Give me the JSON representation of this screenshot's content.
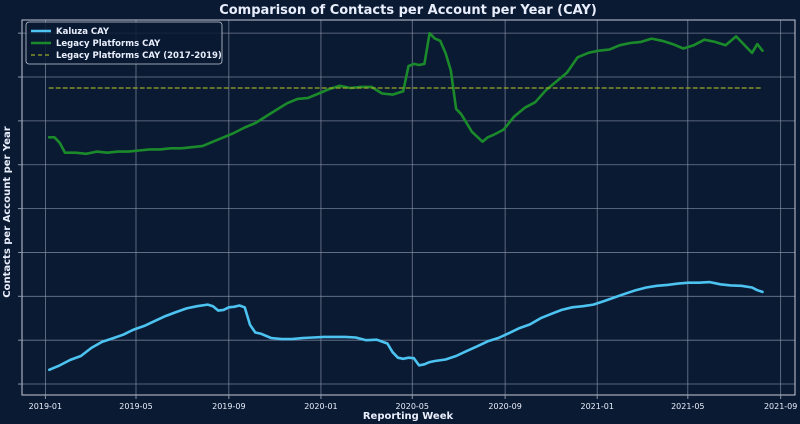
{
  "chart_data": {
    "type": "line",
    "title": "Comparison of Contacts per Account per Year (CAY)",
    "xlabel": "Reporting Week",
    "ylabel": "Contacts per Account per Year",
    "x_axis": {
      "type": "date",
      "min": "2018-12-01",
      "max": "2021-09-20",
      "ticks": [
        "2019-01",
        "2019-05",
        "2019-09",
        "2020-01",
        "2020-05",
        "2020-09",
        "2021-01",
        "2021-05",
        "2021-09"
      ]
    },
    "y_axis": {
      "tick_labels_visible": false,
      "gridlines": 9
    },
    "grid": true,
    "legend": "top-left",
    "colors": {
      "background": "#0b1a33",
      "grid": "#8a93a8",
      "text": "#e8eefc",
      "kaluza": "#4cc3f0",
      "legacy": "#1a8a2a",
      "legacy_baseline": "#9aa624"
    },
    "series": [
      {
        "name": "Kaluza CAY",
        "style": "solid",
        "x": [
          "2019-01-06",
          "2019-01-20",
          "2019-02-03",
          "2019-02-17",
          "2019-03-03",
          "2019-03-17",
          "2019-03-31",
          "2019-04-14",
          "2019-04-28",
          "2019-05-12",
          "2019-05-26",
          "2019-06-09",
          "2019-06-23",
          "2019-07-07",
          "2019-07-21",
          "2019-08-04",
          "2019-08-11",
          "2019-08-18",
          "2019-08-25",
          "2019-09-01",
          "2019-09-08",
          "2019-09-15",
          "2019-09-22",
          "2019-09-29",
          "2019-10-06",
          "2019-10-13",
          "2019-10-27",
          "2019-11-10",
          "2019-11-24",
          "2019-12-08",
          "2019-12-22",
          "2020-01-05",
          "2020-01-19",
          "2020-02-02",
          "2020-02-16",
          "2020-03-01",
          "2020-03-15",
          "2020-03-29",
          "2020-04-05",
          "2020-04-12",
          "2020-04-19",
          "2020-04-26",
          "2020-05-03",
          "2020-05-10",
          "2020-05-17",
          "2020-05-24",
          "2020-05-31",
          "2020-06-14",
          "2020-06-28",
          "2020-07-12",
          "2020-07-26",
          "2020-08-09",
          "2020-08-23",
          "2020-09-06",
          "2020-09-20",
          "2020-10-04",
          "2020-10-18",
          "2020-11-01",
          "2020-11-15",
          "2020-11-29",
          "2020-12-13",
          "2020-12-27",
          "2021-01-10",
          "2021-01-24",
          "2021-02-07",
          "2021-02-21",
          "2021-03-07",
          "2021-03-21",
          "2021-04-04",
          "2021-04-18",
          "2021-05-02",
          "2021-05-16",
          "2021-05-30",
          "2021-06-06",
          "2021-06-13",
          "2021-06-27",
          "2021-07-11",
          "2021-07-25",
          "2021-08-01",
          "2021-08-08"
        ],
        "y": [
          2.65,
          2.85,
          3.1,
          3.28,
          3.65,
          3.92,
          4.08,
          4.25,
          4.48,
          4.65,
          4.88,
          5.1,
          5.28,
          5.45,
          5.55,
          5.62,
          5.55,
          5.35,
          5.38,
          5.5,
          5.52,
          5.58,
          5.5,
          4.7,
          4.35,
          4.3,
          4.1,
          4.05,
          4.05,
          4.1,
          4.12,
          4.15,
          4.15,
          4.15,
          4.12,
          4.0,
          4.02,
          3.85,
          3.45,
          3.2,
          3.15,
          3.2,
          3.18,
          2.85,
          2.9,
          3.0,
          3.05,
          3.12,
          3.28,
          3.5,
          3.72,
          3.95,
          4.1,
          4.32,
          4.55,
          4.72,
          5.0,
          5.2,
          5.38,
          5.5,
          5.55,
          5.62,
          5.78,
          5.95,
          6.12,
          6.28,
          6.4,
          6.48,
          6.52,
          6.58,
          6.62,
          6.62,
          6.65,
          6.6,
          6.55,
          6.5,
          6.48,
          6.4,
          6.28,
          6.2
        ]
      },
      {
        "name": "Legacy Platforms CAY",
        "style": "solid",
        "x": [
          "2019-01-06",
          "2019-01-13",
          "2019-01-20",
          "2019-01-27",
          "2019-02-10",
          "2019-02-24",
          "2019-03-10",
          "2019-03-24",
          "2019-04-07",
          "2019-04-21",
          "2019-05-05",
          "2019-05-19",
          "2019-06-02",
          "2019-06-16",
          "2019-06-30",
          "2019-07-14",
          "2019-07-28",
          "2019-08-11",
          "2019-08-25",
          "2019-09-08",
          "2019-09-22",
          "2019-10-06",
          "2019-10-20",
          "2019-11-03",
          "2019-11-17",
          "2019-12-01",
          "2019-12-15",
          "2019-12-29",
          "2020-01-12",
          "2020-01-26",
          "2020-02-09",
          "2020-02-23",
          "2020-03-08",
          "2020-03-22",
          "2020-04-05",
          "2020-04-19",
          "2020-04-26",
          "2020-05-03",
          "2020-05-10",
          "2020-05-17",
          "2020-05-24",
          "2020-05-31",
          "2020-06-07",
          "2020-06-14",
          "2020-06-21",
          "2020-06-28",
          "2020-07-05",
          "2020-07-19",
          "2020-08-02",
          "2020-08-09",
          "2020-08-16",
          "2020-08-30",
          "2020-09-13",
          "2020-09-27",
          "2020-10-11",
          "2020-10-25",
          "2020-11-08",
          "2020-11-22",
          "2020-12-06",
          "2020-12-20",
          "2021-01-03",
          "2021-01-17",
          "2021-01-31",
          "2021-02-14",
          "2021-02-28",
          "2021-03-14",
          "2021-03-28",
          "2021-04-11",
          "2021-04-25",
          "2021-05-09",
          "2021-05-23",
          "2021-06-06",
          "2021-06-20",
          "2021-07-04",
          "2021-07-11",
          "2021-07-18",
          "2021-07-25",
          "2021-08-01",
          "2021-08-08"
        ],
        "y": [
          13.25,
          13.25,
          13.0,
          12.55,
          12.55,
          12.5,
          12.6,
          12.55,
          12.6,
          12.6,
          12.65,
          12.7,
          12.7,
          12.75,
          12.75,
          12.8,
          12.85,
          13.05,
          13.25,
          13.45,
          13.7,
          13.9,
          14.2,
          14.5,
          14.8,
          15.0,
          15.05,
          15.25,
          15.45,
          15.6,
          15.5,
          15.55,
          15.55,
          15.25,
          15.2,
          15.35,
          16.5,
          16.6,
          16.55,
          16.6,
          18.0,
          17.75,
          17.65,
          17.1,
          16.3,
          14.55,
          14.3,
          13.5,
          13.05,
          13.25,
          13.35,
          13.6,
          14.2,
          14.6,
          14.85,
          15.4,
          15.8,
          16.2,
          16.9,
          17.1,
          17.2,
          17.25,
          17.45,
          17.55,
          17.6,
          17.75,
          17.65,
          17.5,
          17.3,
          17.45,
          17.7,
          17.6,
          17.45,
          17.85,
          17.6,
          17.35,
          17.1,
          17.5,
          17.2
        ]
      },
      {
        "name": "Legacy Platforms CAY (2017-2019)",
        "style": "dashed",
        "x": [
          "2019-01-06",
          "2021-08-08"
        ],
        "y": [
          15.5,
          15.5
        ]
      }
    ]
  }
}
